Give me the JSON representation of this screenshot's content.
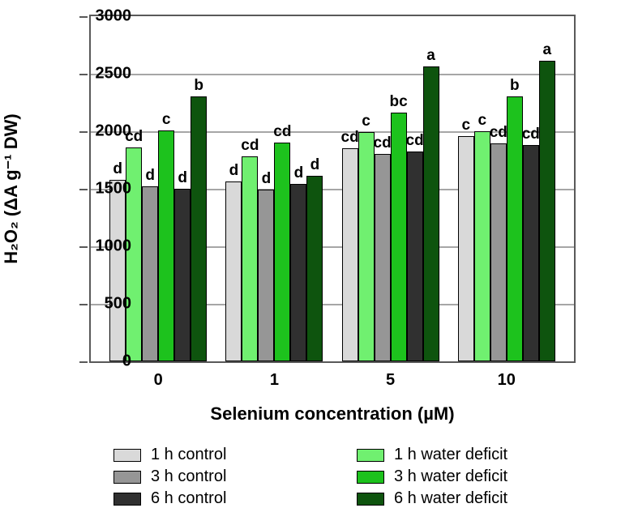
{
  "chart": {
    "type": "bar-grouped",
    "yaxis": {
      "label": "H₂O₂ (ΔA g⁻¹ DW)",
      "min": 0,
      "max": 3000,
      "tick_step": 500,
      "ticks": [
        0,
        500,
        1000,
        1500,
        2000,
        2500,
        3000
      ],
      "label_fontsize": 22,
      "tick_fontsize": 20,
      "label_fontweight": 700
    },
    "xaxis": {
      "label": "Selenium concentration (µM)",
      "label_fontsize": 22,
      "tick_fontsize": 20,
      "label_fontweight": 700
    },
    "background_color": "#ffffff",
    "gridline_color": "#a6a6a6",
    "axis_color": "#595959",
    "bar_border_color": "#000000",
    "group_count": 4,
    "bars_per_group": 6,
    "categories": [
      "0",
      "1",
      "5",
      "10"
    ],
    "series": [
      {
        "name": "1 h control",
        "color": "#d9d9d9"
      },
      {
        "name": "1 h water deficit",
        "color": "#70f070"
      },
      {
        "name": "3 h control",
        "color": "#969696"
      },
      {
        "name": "3 h water deficit",
        "color": "#1dc21d"
      },
      {
        "name": "6 h control",
        "color": "#303030"
      },
      {
        "name": "6 h water deficit",
        "color": "#0e540e"
      }
    ],
    "values": [
      [
        1580,
        1860,
        1520,
        2005,
        1500,
        2300
      ],
      [
        1560,
        1780,
        1490,
        1900,
        1540,
        1610
      ],
      [
        1850,
        1990,
        1800,
        2165,
        1825,
        2560
      ],
      [
        1960,
        2000,
        1895,
        2300,
        1880,
        2610
      ]
    ],
    "bar_labels": [
      [
        "d",
        "cd",
        "d",
        "c",
        "d",
        "b"
      ],
      [
        "d",
        "cd",
        "d",
        "cd",
        "d",
        "d"
      ],
      [
        "cd",
        "c",
        "cd",
        "bc",
        "cd",
        "a"
      ],
      [
        "c",
        "c",
        "cd",
        "b",
        "cd",
        "a"
      ]
    ],
    "bar_label_fontsize": 19,
    "legend_fontsize": 20
  }
}
